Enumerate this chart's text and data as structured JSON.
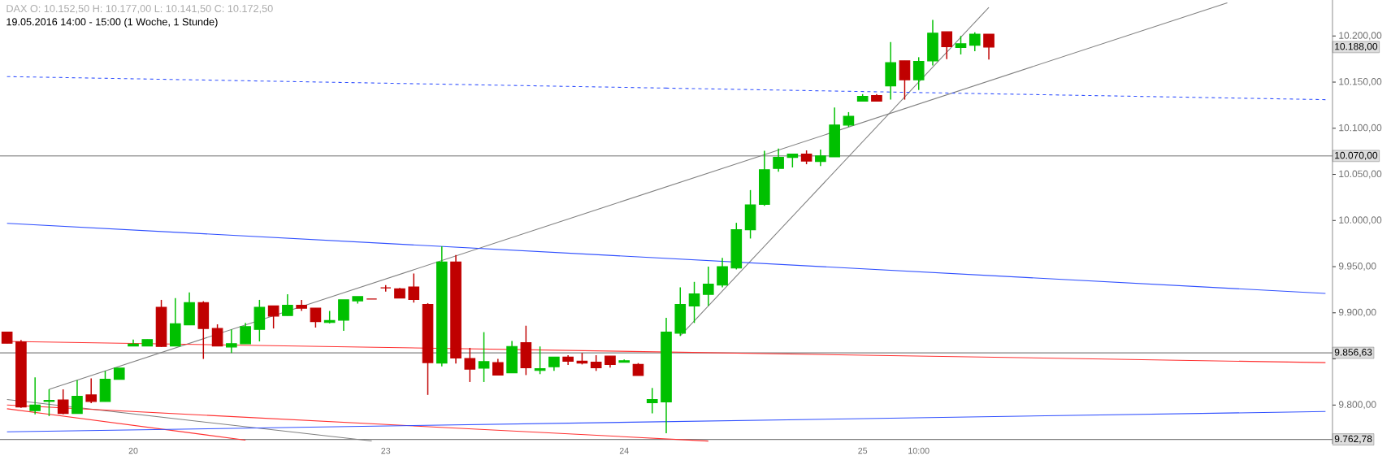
{
  "chart_data": {
    "type": "candlestick",
    "title": "DAX  O: 10.152,50  H: 10.177,00  L: 10.141,50  C: 10.172,50",
    "subtitle": "19.05.2016 14:00 - 15:00 (1 Woche, 1 Stunde)",
    "categories": [
      null,
      null,
      null,
      null,
      null,
      null,
      null,
      null,
      null,
      "20",
      null,
      null,
      null,
      null,
      null,
      null,
      null,
      null,
      null,
      null,
      null,
      null,
      null,
      null,
      null,
      null,
      null,
      "23",
      null,
      null,
      null,
      null,
      null,
      null,
      null,
      null,
      null,
      null,
      null,
      null,
      null,
      null,
      null,
      null,
      "24",
      null,
      null,
      null,
      null,
      null,
      null,
      null,
      null,
      null,
      null,
      null,
      null,
      null,
      null,
      null,
      null,
      "25",
      null,
      null,
      null,
      "10:00",
      null,
      null,
      null,
      null,
      null,
      null,
      null,
      null,
      null,
      null,
      null,
      null,
      null,
      null,
      null,
      null,
      null,
      null,
      null,
      null,
      null,
      null,
      null,
      null,
      null,
      null,
      null,
      null,
      null
    ],
    "ohlc": [
      [
        9879,
        9879,
        9867,
        9867
      ],
      [
        9868.5,
        9870.5,
        9797,
        9798
      ],
      [
        9794,
        9830,
        9790,
        9800
      ],
      [
        9804,
        9817,
        9788,
        9805
      ],
      [
        9805.5,
        9817,
        9790,
        9791
      ],
      [
        9791,
        9827,
        9791,
        9809.5
      ],
      [
        9811,
        9829,
        9802,
        9804
      ],
      [
        9804,
        9837,
        9804,
        9828
      ],
      [
        9828,
        9840,
        9828,
        9840
      ],
      [
        9864,
        9871,
        9864,
        9866
      ],
      [
        9864,
        9871,
        9864,
        9871
      ],
      [
        9906,
        9914,
        9863,
        9863.5
      ],
      [
        9864,
        9916,
        9864,
        9888
      ],
      [
        9887,
        9922,
        9887,
        9911
      ],
      [
        9911,
        9912.5,
        9850,
        9883
      ],
      [
        9883,
        9887.5,
        9864,
        9864
      ],
      [
        9863,
        9882,
        9856.5,
        9866.5
      ],
      [
        9866.5,
        9889,
        9866.5,
        9885
      ],
      [
        9882,
        9914,
        9869,
        9906
      ],
      [
        9907.5,
        9907.5,
        9883,
        9896.5
      ],
      [
        9897,
        9920,
        9897,
        9908
      ],
      [
        9908,
        9914,
        9902,
        9905
      ],
      [
        9905,
        9905,
        9884,
        9890.5
      ],
      [
        9889.5,
        9902,
        9888.5,
        9891.5
      ],
      [
        9892,
        9914,
        9880.5,
        9914
      ],
      [
        9913,
        9917.5,
        9910,
        9917.5
      ],
      [
        9915,
        9915,
        9915,
        9915
      ],
      [
        9927,
        9930,
        9923,
        9927
      ],
      [
        9926,
        9927,
        9916,
        9916
      ],
      [
        9928,
        9942.5,
        9911,
        9914.5
      ],
      [
        9909,
        9910.5,
        9811,
        9846
      ],
      [
        9845.5,
        9972,
        9842,
        9955
      ],
      [
        9955,
        9962.5,
        9845,
        9851
      ],
      [
        9850.5,
        9862,
        9825,
        9839
      ],
      [
        9840,
        9879,
        9825,
        9847
      ],
      [
        9846,
        9850,
        9832.5,
        9832.5
      ],
      [
        9835,
        9869.5,
        9835,
        9863.5
      ],
      [
        9867.5,
        9886,
        9832.5,
        9840.5
      ],
      [
        9837.5,
        9863.5,
        9833.5,
        9839.5
      ],
      [
        9841.5,
        9852,
        9837,
        9852
      ],
      [
        9852,
        9854,
        9843.5,
        9847.5
      ],
      [
        9847.5,
        9856.5,
        9844,
        9845.5
      ],
      [
        9846.5,
        9854,
        9837,
        9840.5
      ],
      [
        9853,
        9853,
        9840.5,
        9844
      ],
      [
        9846.5,
        9849.5,
        9846.5,
        9848
      ],
      [
        9844,
        9845.5,
        9832,
        9832
      ],
      [
        9802.5,
        9818.5,
        9791,
        9806
      ],
      [
        9803.5,
        9894.5,
        9769.5,
        9879
      ],
      [
        9878,
        9927.5,
        9875,
        9909
      ],
      [
        9907.5,
        9933.5,
        9889,
        9920.5
      ],
      [
        9920,
        9950,
        9907.5,
        9931
      ],
      [
        9930,
        9959.5,
        9927.5,
        9950
      ],
      [
        9948.5,
        9997.5,
        9947,
        9990
      ],
      [
        9990,
        10033,
        9980.5,
        10017
      ],
      [
        10017.5,
        10075.5,
        10016,
        10055
      ],
      [
        10056.5,
        10078,
        10053,
        10068.5
      ],
      [
        10068.5,
        10072,
        10057.5,
        10072
      ],
      [
        10072,
        10076,
        10061,
        10064.5
      ],
      [
        10064,
        10077,
        10059,
        10070
      ],
      [
        10069,
        10122.5,
        10069,
        10103.5
      ],
      [
        10103.5,
        10117.5,
        10101.5,
        10113
      ],
      [
        10129.5,
        10137,
        10129.5,
        10134.5
      ],
      [
        10135.5,
        10137,
        10129.5,
        10129.5
      ],
      [
        10146,
        10193.5,
        10131,
        10171
      ],
      [
        10173,
        10173,
        10131,
        10152.5
      ],
      [
        10152.5,
        10177,
        10141.5,
        10172.5
      ],
      [
        10173,
        10217.5,
        10168,
        10203
      ],
      [
        10204.5,
        10204.5,
        10175,
        10188.5
      ],
      [
        10187.5,
        10200,
        10180,
        10191.5
      ],
      [
        10190,
        10204,
        10183.5,
        10202
      ],
      [
        10202,
        10202,
        10174.5,
        10188
      ],
      null,
      null,
      null,
      null,
      null,
      null,
      null,
      null,
      null,
      null,
      null,
      null,
      null,
      null,
      null,
      null,
      null,
      null,
      null,
      null,
      null,
      null,
      null,
      null
    ],
    "colors": [
      "#c00000",
      "#c00000",
      "#00c000",
      "#00c000",
      "#c00000",
      "#00c000",
      "#c00000",
      "#00c000",
      "#00c000",
      "#00c000",
      "#00c000",
      "#c00000",
      "#00c000",
      "#00c000",
      "#c00000",
      "#c00000",
      "#00c000",
      "#00c000",
      "#00c000",
      "#c00000",
      "#00c000",
      "#c00000",
      "#c00000",
      "#00c000",
      "#00c000",
      "#00c000",
      "#c00000",
      "#c00000",
      "#c00000",
      "#c00000",
      "#c00000",
      "#00c000",
      "#c00000",
      "#c00000",
      "#00c000",
      "#c00000",
      "#00c000",
      "#c00000",
      "#00c000",
      "#00c000",
      "#c00000",
      "#c00000",
      "#c00000",
      "#c00000",
      "#00c000",
      "#c00000",
      "#00c000",
      "#00c000",
      "#00c000",
      "#00c000",
      "#00c000",
      "#00c000",
      "#00c000",
      "#00c000",
      "#00c000",
      "#00c000",
      "#00c000",
      "#c00000",
      "#00c000",
      "#00c000",
      "#00c000",
      "#00c000",
      "#c00000",
      "#00c000",
      "#c00000",
      "#00c000",
      "#00c000",
      "#c00000",
      "#00c000",
      "#00c000",
      "#c00000",
      null,
      null,
      null,
      null,
      null,
      null,
      null,
      null,
      null,
      null,
      null,
      null,
      null,
      null,
      null,
      null,
      null,
      null,
      null,
      null,
      null,
      null,
      null,
      null
    ],
    "series": [
      {
        "type": "line",
        "color": "#808080",
        "values": [
          null,
          null,
          null,
          9817,
          null,
          null,
          null,
          null,
          null,
          null,
          null,
          null,
          null,
          null,
          null,
          null,
          null,
          null,
          null,
          null,
          null,
          null,
          null,
          null,
          null,
          null,
          null,
          null,
          null,
          null,
          null,
          null,
          null,
          null,
          null,
          null,
          null,
          null,
          null,
          null,
          null,
          null,
          null,
          null,
          null,
          null,
          null,
          null,
          null,
          null,
          null,
          null,
          null,
          null,
          null,
          null,
          null,
          null,
          null,
          null,
          null,
          null,
          null,
          null,
          null,
          null,
          null,
          null,
          null,
          null,
          null,
          null,
          null,
          null,
          null,
          null,
          null,
          null,
          null,
          null,
          null,
          null,
          null,
          null,
          null,
          null,
          null,
          10236,
          null,
          null,
          null,
          null,
          null,
          null,
          null
        ]
      },
      {
        "type": "line",
        "color": "#808080",
        "values": [
          null,
          null,
          null,
          null,
          null,
          null,
          null,
          null,
          null,
          null,
          null,
          null,
          null,
          null,
          null,
          null,
          null,
          null,
          null,
          null,
          null,
          null,
          null,
          null,
          null,
          null,
          null,
          null,
          null,
          null,
          null,
          null,
          null,
          null,
          null,
          null,
          null,
          null,
          null,
          null,
          null,
          null,
          null,
          null,
          null,
          null,
          null,
          null,
          9875,
          null,
          null,
          null,
          null,
          null,
          null,
          null,
          null,
          null,
          null,
          null,
          null,
          null,
          null,
          null,
          null,
          null,
          null,
          null,
          null,
          null,
          10231,
          null,
          null,
          null,
          null,
          null,
          null,
          null,
          null,
          null,
          null,
          null,
          null,
          null,
          null,
          null,
          null,
          null,
          null,
          null,
          null,
          null,
          null,
          null,
          null
        ]
      },
      {
        "type": "line",
        "color": "#808080",
        "values": [
          9806,
          null,
          null,
          null,
          null,
          null,
          null,
          null,
          null,
          null,
          null,
          null,
          null,
          null,
          null,
          null,
          null,
          null,
          null,
          null,
          null,
          null,
          null,
          null,
          null,
          null,
          9761,
          null,
          null,
          null,
          null,
          null,
          null,
          null,
          null,
          null,
          null,
          null,
          null,
          null,
          null,
          null,
          null,
          null,
          null,
          null,
          null,
          null,
          null,
          null,
          null,
          null,
          null,
          null,
          null,
          null,
          null,
          null,
          null,
          null,
          null,
          null,
          null,
          null,
          null,
          null,
          null,
          null,
          null,
          null,
          null,
          null,
          null,
          null,
          null,
          null,
          null,
          null,
          null,
          null,
          null,
          null,
          null,
          null,
          null,
          null,
          null,
          null,
          null,
          null,
          null,
          null,
          null,
          null,
          null
        ]
      },
      {
        "type": "line",
        "color": "#3050ff",
        "values": [
          9997,
          null,
          null,
          null,
          null,
          null,
          null,
          null,
          null,
          null,
          null,
          null,
          null,
          null,
          null,
          null,
          null,
          null,
          null,
          null,
          null,
          null,
          null,
          null,
          null,
          null,
          null,
          null,
          null,
          null,
          null,
          null,
          null,
          null,
          null,
          null,
          null,
          null,
          null,
          null,
          null,
          null,
          null,
          null,
          null,
          null,
          null,
          null,
          null,
          null,
          null,
          null,
          null,
          null,
          null,
          null,
          null,
          null,
          null,
          null,
          null,
          null,
          null,
          null,
          null,
          null,
          null,
          null,
          null,
          null,
          null,
          null,
          null,
          null,
          null,
          null,
          null,
          null,
          null,
          null,
          null,
          null,
          null,
          null,
          null,
          null,
          null,
          null,
          null,
          null,
          null,
          null,
          null,
          null,
          9921
        ]
      },
      {
        "type": "line",
        "color": "#3050ff",
        "line_style": "dashed",
        "values": [
          10156,
          null,
          null,
          null,
          null,
          null,
          null,
          null,
          null,
          null,
          null,
          null,
          null,
          null,
          null,
          null,
          null,
          null,
          null,
          null,
          null,
          null,
          null,
          null,
          null,
          null,
          null,
          null,
          null,
          null,
          null,
          null,
          null,
          null,
          null,
          null,
          null,
          null,
          null,
          null,
          null,
          null,
          null,
          null,
          null,
          null,
          null,
          null,
          null,
          null,
          null,
          null,
          null,
          null,
          null,
          null,
          null,
          null,
          null,
          null,
          null,
          null,
          null,
          null,
          null,
          null,
          null,
          null,
          null,
          null,
          null,
          null,
          null,
          null,
          null,
          null,
          null,
          null,
          null,
          null,
          null,
          null,
          null,
          null,
          null,
          null,
          null,
          null,
          null,
          null,
          null,
          null,
          null,
          null,
          10131
        ]
      },
      {
        "type": "line",
        "color": "#ff3030",
        "values": [
          9869,
          null,
          null,
          null,
          null,
          null,
          null,
          null,
          null,
          null,
          null,
          null,
          null,
          null,
          null,
          null,
          null,
          null,
          null,
          null,
          null,
          null,
          null,
          null,
          null,
          null,
          null,
          null,
          null,
          null,
          null,
          null,
          null,
          null,
          null,
          null,
          null,
          null,
          null,
          null,
          null,
          null,
          null,
          null,
          null,
          null,
          null,
          null,
          null,
          null,
          null,
          null,
          null,
          null,
          null,
          null,
          null,
          null,
          null,
          null,
          null,
          null,
          null,
          null,
          null,
          null,
          null,
          null,
          null,
          null,
          null,
          null,
          null,
          null,
          null,
          null,
          null,
          null,
          null,
          null,
          null,
          null,
          null,
          null,
          null,
          null,
          null,
          null,
          null,
          null,
          null,
          null,
          null,
          null,
          9846
        ]
      },
      {
        "type": "line",
        "color": "#ff3030",
        "values": [
          9800,
          null,
          null,
          null,
          null,
          null,
          null,
          null,
          null,
          null,
          null,
          null,
          null,
          null,
          null,
          null,
          null,
          null,
          null,
          null,
          null,
          null,
          null,
          null,
          null,
          null,
          null,
          null,
          null,
          null,
          null,
          null,
          null,
          null,
          null,
          null,
          null,
          null,
          null,
          null,
          null,
          null,
          null,
          null,
          null,
          null,
          null,
          null,
          null,
          null,
          9761,
          null,
          null,
          null,
          null,
          null,
          null,
          null,
          null,
          null,
          null,
          null,
          null,
          null,
          null,
          null,
          null,
          null,
          null,
          null,
          null,
          null,
          null,
          null,
          null,
          null,
          null,
          null,
          null,
          null,
          null,
          null,
          null,
          null,
          null,
          null,
          null,
          null,
          null,
          null,
          null,
          null,
          null,
          null,
          null
        ]
      },
      {
        "type": "line",
        "color": "#ff3030",
        "values": [
          9796,
          null,
          null,
          null,
          null,
          null,
          null,
          null,
          null,
          null,
          null,
          null,
          null,
          null,
          null,
          null,
          null,
          9762,
          null,
          null,
          null,
          null,
          null,
          null,
          null,
          null,
          null,
          null,
          null,
          null,
          null,
          null,
          null,
          null,
          null,
          null,
          null,
          null,
          null,
          null,
          null,
          null,
          null,
          null,
          null,
          null,
          null,
          null,
          null,
          null,
          null,
          null,
          null,
          null,
          null,
          null,
          null,
          null,
          null,
          null,
          null,
          null,
          null,
          null,
          null,
          null,
          null,
          null,
          null,
          null,
          null,
          null,
          null,
          null,
          null,
          null,
          null,
          null,
          null,
          null,
          null,
          null,
          null,
          null,
          null,
          null,
          null,
          null,
          null,
          null,
          null,
          null,
          null,
          null,
          null
        ]
      },
      {
        "type": "line",
        "color": "#3050ff",
        "values": [
          9771,
          null,
          null,
          null,
          null,
          null,
          null,
          null,
          null,
          null,
          null,
          null,
          null,
          null,
          null,
          null,
          null,
          null,
          null,
          null,
          null,
          null,
          null,
          null,
          null,
          null,
          null,
          null,
          null,
          null,
          null,
          null,
          null,
          null,
          null,
          null,
          null,
          null,
          null,
          null,
          null,
          null,
          null,
          null,
          null,
          null,
          null,
          null,
          null,
          null,
          null,
          null,
          null,
          null,
          null,
          null,
          null,
          null,
          null,
          null,
          null,
          null,
          null,
          null,
          null,
          null,
          null,
          null,
          null,
          null,
          null,
          null,
          null,
          null,
          null,
          null,
          null,
          null,
          null,
          null,
          null,
          null,
          null,
          null,
          null,
          null,
          null,
          null,
          null,
          null,
          null,
          null,
          null,
          null,
          9793
        ]
      }
    ],
    "ylim": [
      9758,
      10239
    ],
    "yticks": [
      {
        "value": 9800,
        "label": "9.800,00"
      },
      {
        "value": 9850,
        "label": null
      },
      {
        "value": 9900,
        "label": "9.900,00"
      },
      {
        "value": 9950,
        "label": "9.950,00"
      },
      {
        "value": 10000,
        "label": "10.000,00"
      },
      {
        "value": 10050,
        "label": "10.050,00"
      },
      {
        "value": 10100,
        "label": "10.100,00"
      },
      {
        "value": 10150,
        "label": "10.150,00"
      },
      {
        "value": 10200,
        "label": "10.200,00"
      }
    ],
    "ref_lines": [
      {
        "axis": "y",
        "value": 10070,
        "label": "10.070,00",
        "color": "#808080"
      },
      {
        "axis": "y",
        "value": 9856.63,
        "label": "9.856,63",
        "color": "#808080"
      },
      {
        "axis": "y",
        "value": 9762.78,
        "label": "9.762,78",
        "color": "#808080"
      }
    ],
    "annotations": [
      "10.188,00"
    ]
  }
}
